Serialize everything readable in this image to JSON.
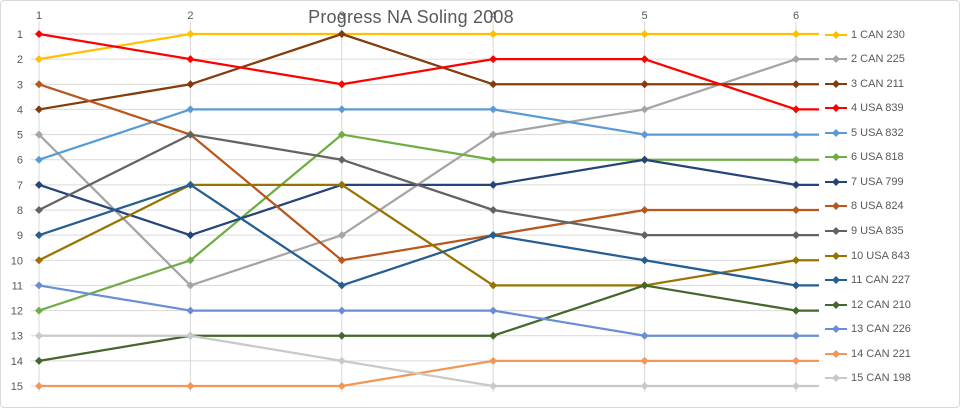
{
  "chart_data": {
    "type": "line",
    "subtype": "bump-chart-rankings",
    "title": "Progress NA Soling 2008",
    "x_categories": [
      "1",
      "2",
      "3",
      "4",
      "5",
      "6"
    ],
    "y_ticks": [
      "1",
      "2",
      "3",
      "4",
      "5",
      "6",
      "7",
      "8",
      "9",
      "10",
      "11",
      "12",
      "13",
      "14",
      "15"
    ],
    "y_axis_inverted": true,
    "ylim": [
      1,
      15
    ],
    "grid": true,
    "legend_position": "right",
    "marker": "diamond",
    "axis_text_color": "#595959",
    "title_color": "#595959",
    "gridline_color": "#D9D9D9",
    "border_color": "#D9D9D9",
    "background_color": "#FFFFFF",
    "series": [
      {
        "name": "1 CAN 230",
        "color": "#FFC000",
        "ranks": [
          2,
          1,
          1,
          1,
          1,
          1
        ]
      },
      {
        "name": "2 CAN 225",
        "color": "#A5A5A5",
        "ranks": [
          5,
          11,
          9,
          5,
          4,
          2
        ]
      },
      {
        "name": "3 CAN 211",
        "color": "#843C0C",
        "ranks": [
          4,
          3,
          1,
          3,
          3,
          3
        ]
      },
      {
        "name": "4 USA 839",
        "color": "#FF0000",
        "ranks": [
          1,
          2,
          3,
          2,
          2,
          4
        ]
      },
      {
        "name": "5 USA 832",
        "color": "#5B9BD5",
        "ranks": [
          6,
          4,
          4,
          4,
          5,
          5
        ]
      },
      {
        "name": "6 USA 818",
        "color": "#70AD47",
        "ranks": [
          12,
          10,
          5,
          6,
          6,
          6
        ]
      },
      {
        "name": "7 USA 799",
        "color": "#264478",
        "ranks": [
          7,
          9,
          7,
          7,
          6,
          7
        ]
      },
      {
        "name": "8 USA 824",
        "color": "#B8581E",
        "ranks": [
          3,
          5,
          10,
          9,
          8,
          8
        ]
      },
      {
        "name": "9 USA 835",
        "color": "#636363",
        "ranks": [
          8,
          5,
          6,
          8,
          9,
          9
        ]
      },
      {
        "name": "10 USA 843",
        "color": "#997300",
        "ranks": [
          10,
          7,
          7,
          11,
          11,
          10
        ]
      },
      {
        "name": "11 CAN 227",
        "color": "#255E91",
        "ranks": [
          9,
          7,
          11,
          9,
          10,
          11
        ]
      },
      {
        "name": "12 CAN 210",
        "color": "#43682B",
        "ranks": [
          14,
          13,
          13,
          13,
          11,
          12
        ]
      },
      {
        "name": "13 CAN 226",
        "color": "#6A8ED2",
        "ranks": [
          11,
          12,
          12,
          12,
          13,
          13
        ]
      },
      {
        "name": "14 CAN 221",
        "color": "#F1975A",
        "ranks": [
          15,
          15,
          15,
          14,
          14,
          14
        ]
      },
      {
        "name": "15 CAN 198",
        "color": "#C9C9C9",
        "ranks": [
          13,
          13,
          14,
          15,
          15,
          15
        ]
      }
    ]
  }
}
